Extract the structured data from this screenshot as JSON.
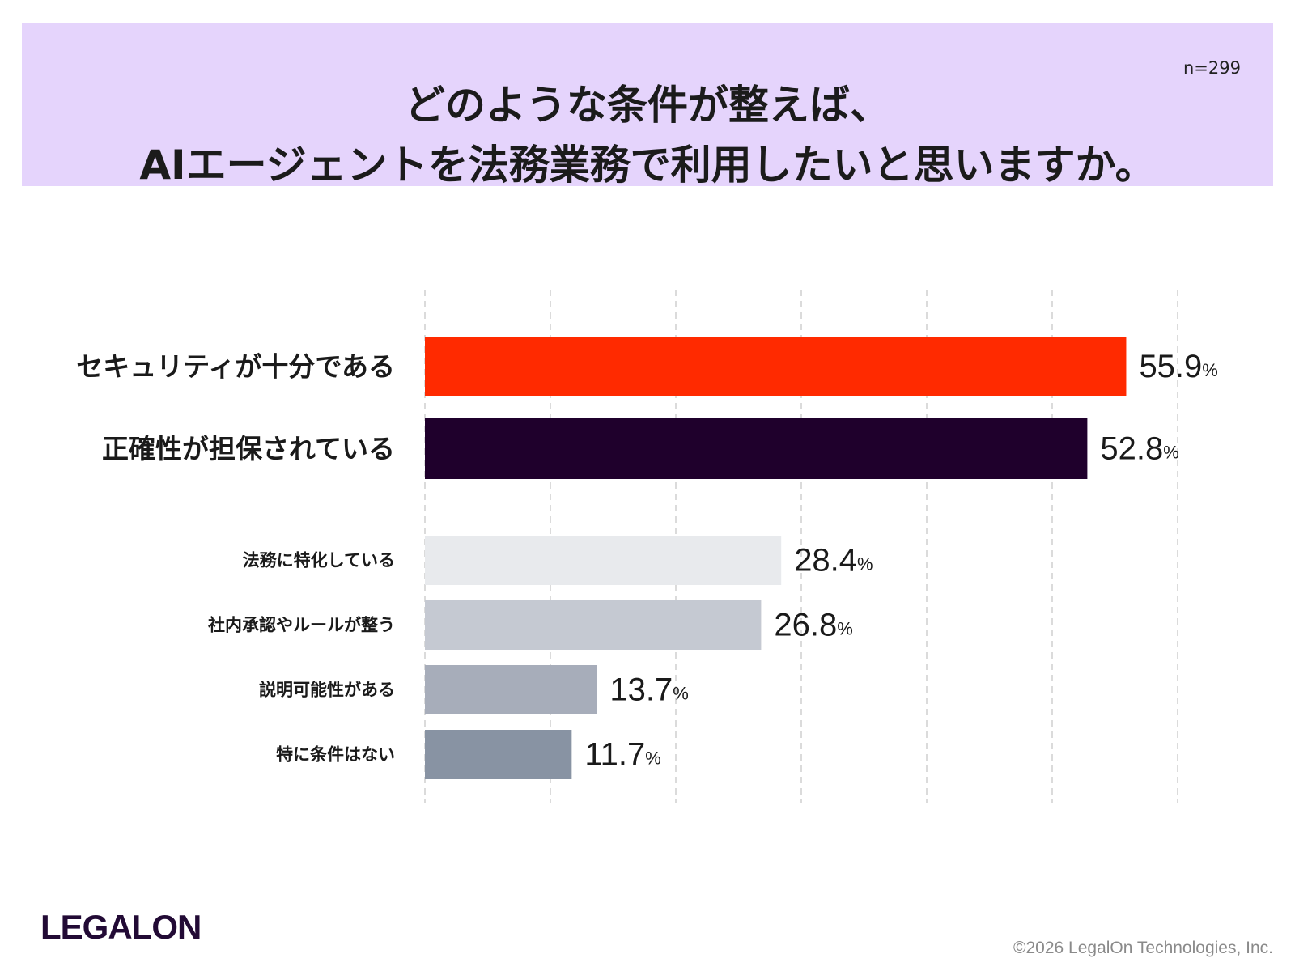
{
  "header": {
    "title_line1": "どのような条件が整えば、",
    "title_line2": "AIエージェントを法務業務で利用したいと思いますか。",
    "sample_size": "n=299",
    "background_color": "#e5d4fc"
  },
  "chart_data": {
    "type": "bar",
    "orientation": "horizontal",
    "title": "どのような条件が整えば、AIエージェントを法務業務で利用したいと思いますか。",
    "categories": [
      "セキュリティが十分である",
      "正確性が担保されている",
      "法務に特化している",
      "社内承認やルールが整う",
      "説明可能性がある",
      "特に条件はない"
    ],
    "values": [
      55.9,
      52.8,
      28.4,
      26.8,
      13.7,
      11.7
    ],
    "value_labels": [
      "55.9",
      "52.8",
      "28.4",
      "26.8",
      "13.7",
      "11.7"
    ],
    "unit": "%",
    "colors": [
      "#ff2a00",
      "#1f002c",
      "#e8eaed",
      "#c5c9d2",
      "#a7adba",
      "#8893a3"
    ],
    "xlim": [
      0,
      60
    ],
    "grid_step": 10,
    "grid": true
  },
  "footer": {
    "logo": "LEGALON",
    "copyright": "©2026 LegalOn Technologies, Inc."
  }
}
